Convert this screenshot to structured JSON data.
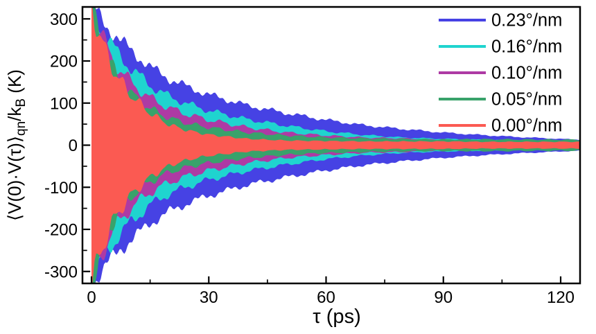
{
  "figure": {
    "background": "#ffffff",
    "frame_color": "#000000",
    "text_color": "#000000"
  },
  "chart_data": {
    "type": "area",
    "description": "Decaying oscillation envelopes of the quantum-normal-mode velocity autocorrelation function for five twist rates; each series is a filled band symmetric about zero between +envelope and -envelope, drawn back-to-front (largest twist rate at back, 0.00 deg/nm on top).",
    "title": "",
    "xlabel": "τ (ps)",
    "ylabel": "⟨V(0)·V(τ)⟩qn/kB (K)",
    "ylabel_parts": [
      {
        "text": "⟨V(0)·V(τ)⟩",
        "sub": false
      },
      {
        "text": "qn",
        "sub": true
      },
      {
        "text": "/k",
        "sub": false
      },
      {
        "text": "B",
        "sub": true
      },
      {
        "text": " (K)",
        "sub": false
      }
    ],
    "xlim": [
      -2.5,
      125
    ],
    "ylim": [
      -328,
      328
    ],
    "x_major_ticks": [
      0,
      30,
      60,
      90,
      120
    ],
    "x_minor_ticks": [
      15,
      45,
      75,
      105
    ],
    "x_tick_labels": [
      "0",
      "30",
      "60",
      "90",
      "120"
    ],
    "y_major_ticks": [
      300,
      200,
      100,
      0,
      -100,
      -200,
      -300
    ],
    "y_minor_ticks": [
      250,
      150,
      50,
      -50,
      -150,
      -250
    ],
    "y_tick_labels": [
      "300",
      "200",
      "100",
      "0",
      "-100",
      "-200",
      "-300"
    ],
    "grid": false,
    "legend_position": "top-right-inside",
    "tau_samples_ps": [
      0,
      1,
      2,
      3,
      5,
      7,
      10,
      15,
      20,
      25,
      30,
      40,
      50,
      60,
      70,
      80,
      90,
      100,
      110,
      120,
      125
    ],
    "series": [
      {
        "label": "0.23°/nm",
        "color": "#4642E4",
        "envelope_K": [
          340,
          318,
          306,
          294,
          272,
          252,
          226,
          186,
          157,
          137,
          120,
          94,
          76,
          60,
          47,
          38,
          30,
          24,
          19,
          15,
          13
        ],
        "wave": {
          "rel": 0.05,
          "period": 7.5,
          "phase": 0.5
        }
      },
      {
        "label": "0.16°/nm",
        "color": "#1FD4CF",
        "envelope_K": [
          340,
          310,
          290,
          270,
          240,
          215,
          184,
          142,
          115,
          97,
          82,
          61,
          46,
          33,
          24,
          18,
          15,
          13,
          11,
          10,
          10
        ],
        "wave": {
          "rel": 0.07,
          "period": 6.6,
          "phase": 2.1
        }
      },
      {
        "label": "0.10°/nm",
        "color": "#AE3AA4",
        "envelope_K": [
          340,
          302,
          276,
          250,
          212,
          183,
          150,
          112,
          88,
          72,
          60,
          42,
          30,
          23,
          18,
          16,
          12,
          10,
          9,
          9,
          9
        ],
        "wave": {
          "rel": 0.09,
          "period": 5.9,
          "phase": 4.0
        }
      },
      {
        "label": "0.05°/nm",
        "color": "#39A26B",
        "envelope_K": [
          340,
          304,
          270,
          244,
          190,
          157,
          123,
          87,
          64,
          51,
          42,
          30,
          23,
          18.5,
          16,
          14.5,
          13.5,
          14,
          13.5,
          13,
          13
        ],
        "wave": {
          "rel": 0.1,
          "period": 5.3,
          "phase": 1.2
        }
      },
      {
        "label": "0.00°/nm",
        "color": "#FB5A52",
        "envelope_K": [
          340,
          300,
          266,
          236,
          192,
          158,
          120,
          76,
          48,
          34,
          25,
          15,
          11,
          10,
          9,
          9,
          9,
          8,
          8,
          8,
          8
        ],
        "wave": {
          "rel": 0.1,
          "period": 4.5,
          "phase": 3.0
        }
      }
    ]
  }
}
